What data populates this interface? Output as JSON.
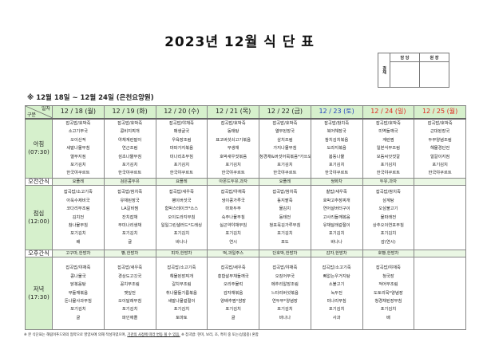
{
  "title": "2023년 12월 식 단 표",
  "approval": {
    "label": "결재",
    "columns": [
      "담 당",
      "원 장"
    ]
  },
  "period": "※ 12월 18일 ~ 12월 24일 (은천요양원)",
  "corner": {
    "top": "일자",
    "bottom": "구분"
  },
  "rows": {
    "breakfast": "아침\n(07:30)",
    "am_snack": "오전간식",
    "lunch": "점심\n(12:00)",
    "pm_snack": "오후간식",
    "dinner": "저녁\n(17:30)"
  },
  "colors": {
    "weekday": "#222222",
    "saturday": "#1f3fbf",
    "holiday": "#e0281e",
    "header_bg": "#d6f0cc"
  },
  "days": [
    {
      "date": "12 / 18 (월)",
      "color": "#222222",
      "breakfast": [
        "잡곡밥/호박죽",
        "소고기무국",
        "오이산적",
        "세발나물무침",
        "열무지짐",
        "포기김치",
        "한국야쿠르트"
      ],
      "am_snack": "요플레",
      "lunch": [
        "잡곡밥/소고기죽",
        "아욱수제비국",
        "코다리무조림",
        "김치전",
        "참나물무침",
        "포기김치",
        "배"
      ],
      "pm_snack": "고구마,한방차",
      "dinner": [
        "잡곡밥/야채죽",
        "콩나물국",
        "닭볶음탕",
        "무들깨볶음",
        "돈나물사과무침",
        "포기김치",
        "귤"
      ]
    },
    {
      "date": "12 / 19 (화)",
      "color": "#222222",
      "breakfast": [
        "잡곡밥/호박죽",
        "콩비지찌개",
        "야채계란말이",
        "연근조림",
        "섬초나물무침",
        "포기김치",
        "한국야쿠르트"
      ],
      "am_snack": "검은콩두유",
      "lunch": [
        "잡곡밥/참치죽",
        "유채된장국",
        "LA갈비찜",
        "잔치잡채",
        "무미나리생채",
        "포기김치",
        "귤"
      ],
      "pm_snack": "빵,한방차",
      "dinner": [
        "잡곡밥/새우죽",
        "경상도고깃국",
        "꽁치무조림",
        "깻잎전",
        "오이달래무침",
        "포기김치",
        "파인애플"
      ]
    },
    {
      "date": "12 / 20 (수)",
      "color": "#222222",
      "breakfast": [
        "잡곡밥/야채죽",
        "매생굴국",
        "우육장조림",
        "마파가지볶음",
        "미나리초무침",
        "포기김치",
        "한국야쿠르트"
      ],
      "am_snack": "요플레",
      "lunch": [
        "잡곡밥/새우죽",
        "팽이버섯국",
        "함박스테이크*소스",
        "오이도라지무침",
        "일일그린샐러드*드레싱",
        "포기김치",
        "바나나"
      ],
      "pm_snack": "피자,한방차",
      "dinner": [
        "잡곡밥/소고기죽",
        "해물된장찌개",
        "갈치무조림",
        "취나물들기름볶음",
        "세발나물겉절이",
        "포기김치",
        "토마토"
      ]
    },
    {
      "date": "12 / 21 (목)",
      "color": "#222222",
      "breakfast": [
        "잡곡밥/호박죽",
        "동태탕",
        "표고버섯쇠고기볶음",
        "무생채",
        "호박새우젓볶음",
        "포기김치",
        "한국야쿠르트"
      ],
      "am_snack": "아몬드두유,과자",
      "lunch": [
        "잡곡밥/야채죽",
        "냉이콩가루국",
        "마파두부",
        "숙주나물무침",
        "실곤약야채무침",
        "포기김치",
        "연시"
      ],
      "pm_snack": "떡,과일주스",
      "dinner": [
        "잡곡밥/새우죽",
        "홍합살무채들깨국",
        "오리주물럭",
        "감자채볶음",
        "양배추찜*쌈장",
        "포기김치",
        "귤"
      ]
    },
    {
      "date": "12 / 22 (금)",
      "color": "#222222",
      "breakfast": [
        "잡곡밥/호박죽",
        "열무된장국",
        "삼치조림",
        "가지나물무침",
        "청경채&버섯어묵볶음*가쓰오",
        "포기김치",
        "한국야쿠르트"
      ],
      "am_snack": "요플레",
      "lunch": [
        "잡곡밥/참치죽",
        "동지팥죽",
        "물김치",
        "동태전",
        "청포묵김가루무침",
        "포기김치",
        "포도"
      ],
      "pm_snack": "단호박,한방차",
      "dinner": [
        "잡곡밥/야채죽",
        "오징어무국",
        "메추리알장조림",
        "느타리버섯볶음",
        "연두부*양념장",
        "포기김치",
        "바나나"
      ]
    },
    {
      "date": "12 / 23 (토)",
      "color": "#1f3fbf",
      "breakfast": [
        "잡곡밥/참치죽",
        "북어해장국",
        "참치김치볶음",
        "도라지볶음",
        "봄동나물",
        "포기김치",
        "한국야쿠르트"
      ],
      "am_snack": "쌍화차",
      "lunch": [
        "찰밥/새우죽",
        "호박고추장찌개",
        "연어살버터구이",
        "고사리들깨볶음",
        "유채달래겉절이",
        "포기김치",
        "바나나"
      ],
      "pm_snack": "감자,한방차",
      "dinner": [
        "잡곡밥/소고기죽",
        "뼈없는우거지탕",
        "소불고기",
        "녹두전",
        "미나리무침",
        "포기김치",
        "사과"
      ]
    },
    {
      "date": "12 / 24 (일)",
      "color": "#e0281e",
      "breakfast": [
        "잡곡밥/호박죽",
        "미역들깨국",
        "계란찜",
        "일본식무조림",
        "모둠씨앗젓갈",
        "포기김치",
        "한국야쿠르트"
      ],
      "am_snack": "두유,과자",
      "lunch": [
        "잡곡밥/참치죽",
        "삼계탕",
        "오삼불고기",
        "물파래전",
        "상추오이연포무침",
        "포기김치",
        "감(연시)"
      ],
      "pm_snack": "호빵,한방차",
      "dinner": [
        "잡곡밥/야채죽",
        "청국장",
        "적어무조림",
        "도토리묵*양념장",
        "청경채된장무침",
        "포기김치",
        "배"
      ]
    },
    {
      "date": "12 / 25 (월)",
      "color": "#e0281e",
      "breakfast": [
        "잡곡밥/호박죽",
        "근대된장국",
        "두부양념조림",
        "해물경단전",
        "얼갈이지짐",
        "포기김치",
        "한국야쿠르트"
      ],
      "am_snack": "",
      "lunch": [],
      "pm_snack": "",
      "dinner": []
    }
  ],
  "footnote": {
    "part1": "※ 본 식단표는 해림이푸드와의 협약으로 영양사에 의해 작성하였으며, ",
    "underlined": "기관의 사정에 따라 변동 될 수 있음.",
    "part2": " ※ 잡곡밥: 현미, 보리, 조, 흑미 중 또는(상품중) 혼합"
  }
}
